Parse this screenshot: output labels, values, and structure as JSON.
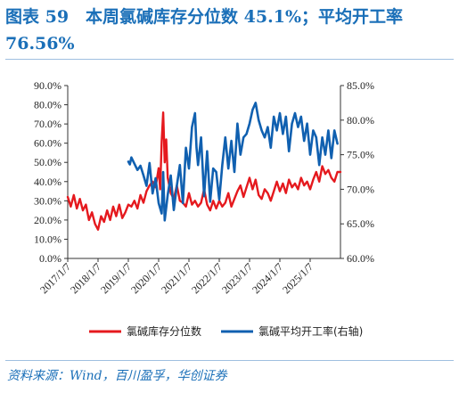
{
  "header": {
    "title": "图表 59　本周氯碱库存分位数 45.1%；平均开工率 76.56%"
  },
  "source": "资料来源：Wind，百川盈孚，华创证券",
  "colors": {
    "series_left": "#e5191e",
    "series_right": "#1060b0",
    "title": "#1a6fb8"
  },
  "chart_data": {
    "type": "line",
    "title": "",
    "x_tick_labels": [
      "2017/1/7",
      "2018/1/7",
      "2019/1/7",
      "2020/1/7",
      "2021/1/7",
      "2022/1/7",
      "2023/1/7",
      "2024/1/7",
      "2025/1/7"
    ],
    "x_range": [
      2017.0,
      2026.0
    ],
    "y_left": {
      "range": [
        0,
        90
      ],
      "ticks": [
        "0.0%",
        "10.0%",
        "20.0%",
        "30.0%",
        "40.0%",
        "50.0%",
        "60.0%",
        "70.0%",
        "80.0%",
        "90.0%"
      ]
    },
    "y_right": {
      "range": [
        60,
        85
      ],
      "ticks": [
        "60.0%",
        "65.0%",
        "70.0%",
        "75.0%",
        "80.0%",
        "85.0%"
      ]
    },
    "legend_position": "bottom",
    "series": [
      {
        "name": "氯碱库存分位数",
        "axis": "left",
        "points": [
          [
            2017.0,
            32
          ],
          [
            2017.1,
            27
          ],
          [
            2017.2,
            33
          ],
          [
            2017.3,
            26
          ],
          [
            2017.4,
            31
          ],
          [
            2017.5,
            25
          ],
          [
            2017.6,
            28
          ],
          [
            2017.7,
            20
          ],
          [
            2017.8,
            24
          ],
          [
            2017.9,
            18
          ],
          [
            2018.0,
            15
          ],
          [
            2018.1,
            22
          ],
          [
            2018.2,
            19
          ],
          [
            2018.3,
            25
          ],
          [
            2018.4,
            20
          ],
          [
            2018.5,
            27
          ],
          [
            2018.6,
            22
          ],
          [
            2018.7,
            28
          ],
          [
            2018.8,
            21
          ],
          [
            2018.9,
            24
          ],
          [
            2019.0,
            28
          ],
          [
            2019.1,
            27
          ],
          [
            2019.2,
            30
          ],
          [
            2019.3,
            26
          ],
          [
            2019.4,
            33
          ],
          [
            2019.5,
            29
          ],
          [
            2019.6,
            35
          ],
          [
            2019.7,
            38
          ],
          [
            2019.8,
            40
          ],
          [
            2019.9,
            37
          ],
          [
            2020.0,
            47
          ],
          [
            2020.05,
            36
          ],
          [
            2020.1,
            61
          ],
          [
            2020.15,
            76
          ],
          [
            2020.2,
            50
          ],
          [
            2020.25,
            62
          ],
          [
            2020.3,
            42
          ],
          [
            2020.4,
            34
          ],
          [
            2020.5,
            31
          ],
          [
            2020.6,
            38
          ],
          [
            2020.7,
            30
          ],
          [
            2020.8,
            29
          ],
          [
            2020.9,
            27
          ],
          [
            2021.0,
            34
          ],
          [
            2021.1,
            28
          ],
          [
            2021.2,
            30
          ],
          [
            2021.3,
            27
          ],
          [
            2021.4,
            29
          ],
          [
            2021.5,
            36
          ],
          [
            2021.6,
            28
          ],
          [
            2021.7,
            25
          ],
          [
            2021.8,
            30
          ],
          [
            2021.9,
            26
          ],
          [
            2022.0,
            30
          ],
          [
            2022.1,
            27
          ],
          [
            2022.2,
            29
          ],
          [
            2022.3,
            34
          ],
          [
            2022.4,
            27
          ],
          [
            2022.5,
            31
          ],
          [
            2022.6,
            35
          ],
          [
            2022.7,
            38
          ],
          [
            2022.8,
            32
          ],
          [
            2022.9,
            37
          ],
          [
            2023.0,
            42
          ],
          [
            2023.1,
            36
          ],
          [
            2023.2,
            41
          ],
          [
            2023.3,
            33
          ],
          [
            2023.4,
            31
          ],
          [
            2023.5,
            36
          ],
          [
            2023.6,
            34
          ],
          [
            2023.7,
            30
          ],
          [
            2023.8,
            35
          ],
          [
            2023.9,
            40
          ],
          [
            2024.0,
            35
          ],
          [
            2024.1,
            39
          ],
          [
            2024.2,
            34
          ],
          [
            2024.3,
            41
          ],
          [
            2024.4,
            37
          ],
          [
            2024.5,
            39
          ],
          [
            2024.6,
            36
          ],
          [
            2024.7,
            42
          ],
          [
            2024.8,
            38
          ],
          [
            2024.9,
            40
          ],
          [
            2025.0,
            36
          ],
          [
            2025.1,
            41
          ],
          [
            2025.2,
            45
          ],
          [
            2025.3,
            40
          ],
          [
            2025.4,
            48
          ],
          [
            2025.5,
            44
          ],
          [
            2025.6,
            46
          ],
          [
            2025.7,
            42
          ],
          [
            2025.8,
            40
          ],
          [
            2025.9,
            45
          ],
          [
            2026.0,
            45
          ]
        ]
      },
      {
        "name": "氯碱平均开工率(右轴)",
        "axis": "right",
        "points": [
          [
            2019.0,
            74.0
          ],
          [
            2019.05,
            73.6
          ],
          [
            2019.1,
            74.6
          ],
          [
            2019.2,
            73.7
          ],
          [
            2019.3,
            72.8
          ],
          [
            2019.4,
            73.4
          ],
          [
            2019.5,
            72.0
          ],
          [
            2019.6,
            70.5
          ],
          [
            2019.7,
            73.8
          ],
          [
            2019.8,
            69.4
          ],
          [
            2019.9,
            71.6
          ],
          [
            2020.0,
            68.0
          ],
          [
            2020.1,
            66.5
          ],
          [
            2020.15,
            72.5
          ],
          [
            2020.2,
            65.5
          ],
          [
            2020.3,
            69.2
          ],
          [
            2020.4,
            72.0
          ],
          [
            2020.5,
            67.0
          ],
          [
            2020.6,
            70.5
          ],
          [
            2020.7,
            73.5
          ],
          [
            2020.8,
            68.0
          ],
          [
            2020.9,
            76.0
          ],
          [
            2021.0,
            73.0
          ],
          [
            2021.1,
            79.0
          ],
          [
            2021.2,
            81.0
          ],
          [
            2021.25,
            76.0
          ],
          [
            2021.3,
            73.5
          ],
          [
            2021.4,
            77.5
          ],
          [
            2021.5,
            69.0
          ],
          [
            2021.6,
            75.5
          ],
          [
            2021.7,
            68.2
          ],
          [
            2021.8,
            73.0
          ],
          [
            2021.9,
            72.5
          ],
          [
            2022.0,
            68.5
          ],
          [
            2022.1,
            73.5
          ],
          [
            2022.2,
            77.5
          ],
          [
            2022.3,
            73.0
          ],
          [
            2022.4,
            77.0
          ],
          [
            2022.5,
            72.5
          ],
          [
            2022.6,
            79.5
          ],
          [
            2022.7,
            75.0
          ],
          [
            2022.8,
            77.5
          ],
          [
            2022.9,
            78.0
          ],
          [
            2023.0,
            79.5
          ],
          [
            2023.1,
            81.5
          ],
          [
            2023.2,
            82.5
          ],
          [
            2023.3,
            80.0
          ],
          [
            2023.4,
            78.5
          ],
          [
            2023.5,
            77.5
          ],
          [
            2023.6,
            79.0
          ],
          [
            2023.7,
            76.0
          ],
          [
            2023.8,
            80.5
          ],
          [
            2023.9,
            78.5
          ],
          [
            2024.0,
            81.0
          ],
          [
            2024.1,
            78.0
          ],
          [
            2024.2,
            80.5
          ],
          [
            2024.3,
            75.5
          ],
          [
            2024.4,
            79.5
          ],
          [
            2024.5,
            81.0
          ],
          [
            2024.6,
            79.0
          ],
          [
            2024.7,
            80.5
          ],
          [
            2024.8,
            77.0
          ],
          [
            2024.9,
            79.5
          ],
          [
            2025.0,
            75.0
          ],
          [
            2025.1,
            78.5
          ],
          [
            2025.2,
            77.5
          ],
          [
            2025.3,
            73.5
          ],
          [
            2025.4,
            77.5
          ],
          [
            2025.5,
            75.0
          ],
          [
            2025.6,
            78.5
          ],
          [
            2025.7,
            74.5
          ],
          [
            2025.8,
            78.5
          ],
          [
            2025.9,
            76.6
          ]
        ]
      }
    ]
  }
}
